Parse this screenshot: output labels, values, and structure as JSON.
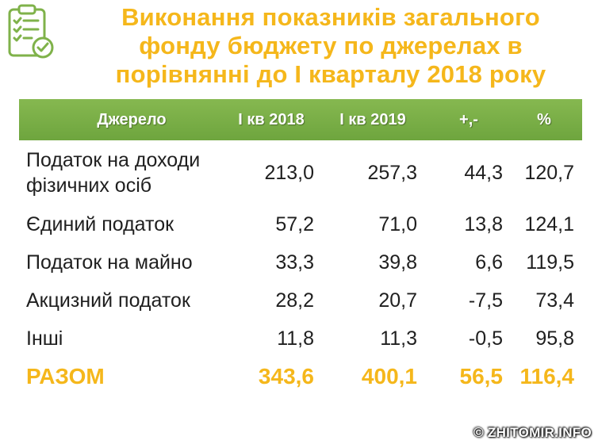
{
  "title_lines": [
    "Виконання показників загального",
    "фонду бюджету по джерелах в",
    "порівнянні до І кварталу 2018 року"
  ],
  "icon": "checklist-clipboard-icon",
  "colors": {
    "header_green": "#77ad45",
    "accent_yellow": "#f5b71b"
  },
  "table": {
    "headers": [
      "Джерело",
      "І кв 2018",
      "І кв 2019",
      "+,-",
      "%"
    ],
    "rows": [
      {
        "name_lines": [
          "Податок на доходи",
          "фізичних осіб"
        ],
        "q2018": "213,0",
        "q2019": "257,3",
        "diff": "44,3",
        "pct": "120,7"
      },
      {
        "name_lines": [
          "Єдиний податок"
        ],
        "q2018": "57,2",
        "q2019": "71,0",
        "diff": "13,8",
        "pct": "124,1"
      },
      {
        "name_lines": [
          "Податок на майно"
        ],
        "q2018": "33,3",
        "q2019": "39,8",
        "diff": "6,6",
        "pct": "119,5"
      },
      {
        "name_lines": [
          "Акцизний податок"
        ],
        "q2018": "28,2",
        "q2019": "20,7",
        "diff": "-7,5",
        "pct": "73,4"
      },
      {
        "name_lines": [
          "Інші"
        ],
        "q2018": "11,8",
        "q2019": "11,3",
        "diff": "-0,5",
        "pct": "95,8"
      }
    ],
    "total": {
      "name": "РАЗОМ",
      "q2018": "343,6",
      "q2019": "400,1",
      "diff": "56,5",
      "pct": "116,4"
    }
  },
  "watermark": "© ZHITOMIR.INFO"
}
